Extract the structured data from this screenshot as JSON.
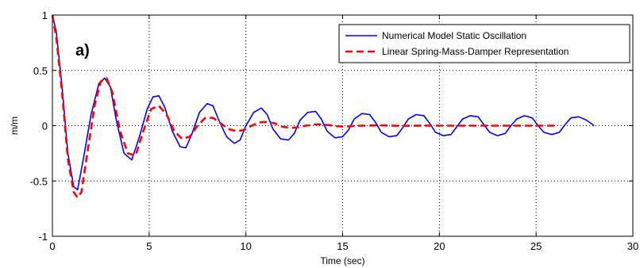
{
  "chart_data": {
    "type": "line",
    "title": "",
    "panel_label": "a)",
    "xlabel": "Time (sec)",
    "ylabel": "m/m",
    "xlim": [
      0,
      30
    ],
    "ylim": [
      -1,
      1
    ],
    "xticks": [
      "0",
      "5",
      "10",
      "15",
      "20",
      "25",
      "30"
    ],
    "yticks": [
      "1",
      "0.5",
      "0",
      "-0.5",
      "-1"
    ],
    "grid": true,
    "legend_position": "top-right",
    "series": [
      {
        "name": "Numerical Model Static Oscillation",
        "color": "#0000ff",
        "style": "solid",
        "x": [
          0,
          0.2,
          0.5,
          0.8,
          1.1,
          1.3,
          1.6,
          2.0,
          2.4,
          2.7,
          3.0,
          3.3,
          3.7,
          4.1,
          4.5,
          4.9,
          5.2,
          5.5,
          5.8,
          6.2,
          6.6,
          6.9,
          7.2,
          7.6,
          8.0,
          8.3,
          8.6,
          9.0,
          9.4,
          9.7,
          10.0,
          10.4,
          10.8,
          11.1,
          11.4,
          11.8,
          12.2,
          12.5,
          12.8,
          13.2,
          13.6,
          13.9,
          14.2,
          14.6,
          15.0,
          15.3,
          15.6,
          16.0,
          16.4,
          16.7,
          17.0,
          17.4,
          17.8,
          18.1,
          18.4,
          18.8,
          19.2,
          19.5,
          19.8,
          20.2,
          20.6,
          20.9,
          21.2,
          21.6,
          22.0,
          22.3,
          22.6,
          23.0,
          23.4,
          23.7,
          24.0,
          24.4,
          24.8,
          25.1,
          25.4,
          25.8,
          26.2,
          26.5,
          26.8,
          27.2,
          27.6,
          28.0
        ],
        "values": [
          1.0,
          0.85,
          0.35,
          -0.25,
          -0.55,
          -0.58,
          -0.3,
          0.1,
          0.38,
          0.43,
          0.35,
          0.05,
          -0.25,
          -0.31,
          -0.1,
          0.15,
          0.26,
          0.27,
          0.17,
          -0.05,
          -0.19,
          -0.2,
          -0.08,
          0.12,
          0.2,
          0.18,
          0.05,
          -0.1,
          -0.16,
          -0.13,
          0.0,
          0.12,
          0.16,
          0.1,
          -0.03,
          -0.12,
          -0.13,
          -0.07,
          0.05,
          0.12,
          0.13,
          0.06,
          -0.05,
          -0.11,
          -0.1,
          -0.04,
          0.06,
          0.11,
          0.1,
          0.03,
          -0.06,
          -0.1,
          -0.09,
          -0.02,
          0.06,
          0.1,
          0.09,
          0.02,
          -0.06,
          -0.09,
          -0.08,
          -0.01,
          0.06,
          0.09,
          0.08,
          0.01,
          -0.06,
          -0.09,
          -0.07,
          0.0,
          0.06,
          0.09,
          0.07,
          0.0,
          -0.06,
          -0.08,
          -0.06,
          0.01,
          0.07,
          0.08,
          0.05,
          0.0
        ]
      },
      {
        "name": "Linear Spring-Mass-Damper Representation",
        "color": "#ff0000",
        "style": "dashed",
        "x": [
          0,
          0.2,
          0.5,
          0.8,
          1.1,
          1.3,
          1.5,
          1.8,
          2.2,
          2.5,
          2.8,
          3.1,
          3.5,
          3.9,
          4.3,
          4.7,
          5.1,
          5.5,
          5.9,
          6.3,
          6.7,
          7.1,
          7.5,
          7.9,
          8.3,
          8.7,
          9.1,
          9.5,
          9.9,
          10.3,
          10.7,
          11.1,
          11.5,
          11.9,
          12.3,
          12.7,
          13.1,
          13.5,
          13.9,
          14.3,
          14.7,
          15.1,
          15.5,
          16.0,
          17.0,
          18.0,
          19.0,
          20.0,
          21.0,
          22.0,
          23.0,
          24.0,
          25.0,
          26.0
        ],
        "values": [
          1.0,
          0.8,
          0.3,
          -0.3,
          -0.6,
          -0.65,
          -0.6,
          -0.25,
          0.2,
          0.4,
          0.43,
          0.3,
          -0.05,
          -0.25,
          -0.27,
          -0.05,
          0.15,
          0.18,
          0.1,
          -0.05,
          -0.12,
          -0.1,
          0.0,
          0.07,
          0.07,
          0.02,
          -0.03,
          -0.05,
          -0.04,
          0.0,
          0.03,
          0.035,
          0.02,
          -0.01,
          -0.02,
          -0.015,
          0.0,
          0.01,
          0.012,
          0.005,
          -0.005,
          -0.008,
          -0.004,
          0.0,
          0.003,
          -0.002,
          0.001,
          0.0,
          0.0,
          0.0,
          0.0,
          0.0,
          0.0,
          0.0
        ]
      }
    ]
  }
}
